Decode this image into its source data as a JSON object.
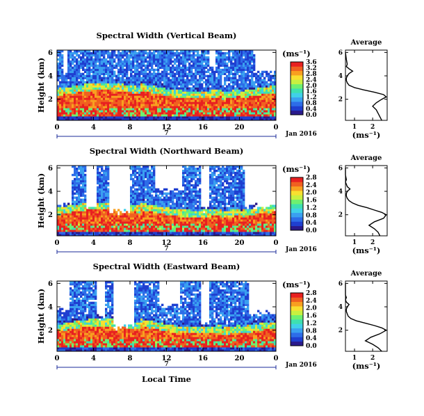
{
  "colors": {
    "colormap": [
      "#2a1a8c",
      "#1f3fd0",
      "#2d6de8",
      "#3aa0f0",
      "#40d0e8",
      "#3ee0b0",
      "#6ef070",
      "#c8f040",
      "#f8e030",
      "#f8a020",
      "#f06020",
      "#e82020"
    ],
    "no_data": "#ffffff",
    "date_axis": "#1a2a9a"
  },
  "chart_data": [
    {
      "type": "heatmap",
      "title": "Spectral Width (Vertical Beam)",
      "ylabel": "Height (km)",
      "x_ticks": [
        "0",
        "4",
        "8",
        "12",
        "16",
        "20",
        "0"
      ],
      "y_ticks": [
        "2",
        "4",
        "6"
      ],
      "xlim": [
        0,
        24
      ],
      "ylim": [
        0.2,
        6.2
      ],
      "date_day": "7",
      "date_label": "Jan 2016",
      "colorbar": {
        "unit": "(ms⁻¹)",
        "ticks": [
          "0.0",
          "0.4",
          "0.8",
          "1.2",
          "1.6",
          "2.0",
          "2.4",
          "2.8",
          "3.2",
          "3.6"
        ],
        "range": [
          0,
          3.6
        ]
      },
      "average": {
        "title": "Average",
        "xlabel": "(ms⁻¹)",
        "x_ticks": [
          "1",
          "2"
        ],
        "y_ticks": [
          "2",
          "4",
          "6"
        ],
        "xlim": [
          0.5,
          2.8
        ],
        "ylim": [
          0.2,
          6.2
        ],
        "heights": [
          0.2,
          0.5,
          0.8,
          1.1,
          1.4,
          1.7,
          2.0,
          2.2,
          2.4,
          2.6,
          2.8,
          3.0,
          3.2,
          3.4,
          3.6,
          3.8,
          4.0,
          4.2,
          4.4,
          4.6,
          4.8,
          5.0,
          5.4,
          6.0
        ],
        "values": [
          2.5,
          2.4,
          2.3,
          2.2,
          2.0,
          2.2,
          2.5,
          2.75,
          2.6,
          2.1,
          1.5,
          1.0,
          0.7,
          0.6,
          0.55,
          0.55,
          0.6,
          0.7,
          0.9,
          0.7,
          0.55,
          0.6,
          0.55,
          0.5
        ]
      }
    },
    {
      "type": "heatmap",
      "title": "Spectral Width (Northward Beam)",
      "ylabel": "Height (km)",
      "x_ticks": [
        "0",
        "4",
        "8",
        "12",
        "16",
        "20",
        "0"
      ],
      "y_ticks": [
        "2",
        "4",
        "6"
      ],
      "xlim": [
        0,
        24
      ],
      "ylim": [
        0.2,
        6.2
      ],
      "date_day": "7",
      "date_label": "Jan 2016",
      "colorbar": {
        "unit": "(ms⁻¹)",
        "ticks": [
          "0.0",
          "0.4",
          "0.8",
          "1.2",
          "1.6",
          "2.0",
          "2.4",
          "2.8"
        ],
        "range": [
          0,
          2.8
        ]
      },
      "average": {
        "title": "Average",
        "xlabel": "(ms⁻¹)",
        "x_ticks": [
          "1",
          "2"
        ],
        "y_ticks": [
          "2",
          "4",
          "6"
        ],
        "xlim": [
          0.5,
          2.8
        ],
        "ylim": [
          0.2,
          6.2
        ],
        "heights": [
          0.2,
          0.5,
          0.8,
          1.1,
          1.4,
          1.7,
          2.0,
          2.2,
          2.4,
          2.6,
          2.8,
          3.0,
          3.2,
          3.4,
          3.6,
          3.8,
          4.0,
          4.2,
          4.4,
          4.6,
          4.8,
          5.0,
          5.4,
          6.0
        ],
        "values": [
          2.4,
          2.3,
          2.1,
          1.8,
          2.1,
          2.6,
          2.75,
          2.5,
          2.1,
          1.7,
          1.2,
          0.9,
          0.7,
          0.6,
          0.55,
          0.55,
          0.6,
          0.75,
          0.6,
          0.55,
          0.5,
          0.55,
          0.5,
          0.5
        ]
      }
    },
    {
      "type": "heatmap",
      "title": "Spectral Width (Eastward Beam)",
      "ylabel": "Height (km)",
      "x_ticks": [
        "0",
        "4",
        "8",
        "12",
        "16",
        "20",
        "0"
      ],
      "y_ticks": [
        "2",
        "4",
        "6"
      ],
      "xlim": [
        0,
        24
      ],
      "ylim": [
        0.2,
        6.2
      ],
      "date_day": "7",
      "date_label": "Jan 2016",
      "xlabel": "Local Time",
      "colorbar": {
        "unit": "(ms⁻¹)",
        "ticks": [
          "0.0",
          "0.4",
          "0.8",
          "1.2",
          "1.6",
          "2.0",
          "2.4",
          "2.8"
        ],
        "range": [
          0,
          2.8
        ]
      },
      "average": {
        "title": "Average",
        "xlabel": "(ms⁻¹)",
        "x_ticks": [
          "1",
          "2"
        ],
        "y_ticks": [
          "2",
          "4",
          "6"
        ],
        "xlim": [
          0.5,
          2.8
        ],
        "ylim": [
          0.2,
          6.2
        ],
        "heights": [
          0.2,
          0.5,
          0.8,
          1.1,
          1.4,
          1.7,
          2.0,
          2.2,
          2.4,
          2.6,
          2.8,
          3.0,
          3.2,
          3.4,
          3.6,
          3.8,
          4.0,
          4.2,
          4.4,
          4.6,
          4.8,
          5.0,
          5.4,
          6.0
        ],
        "values": [
          2.5,
          2.3,
          2.0,
          1.6,
          1.9,
          2.4,
          2.75,
          2.5,
          2.1,
          1.6,
          1.1,
          0.8,
          0.65,
          0.6,
          0.55,
          0.55,
          0.6,
          0.7,
          0.55,
          0.5,
          0.55,
          0.5,
          0.5,
          0.5
        ]
      }
    }
  ]
}
